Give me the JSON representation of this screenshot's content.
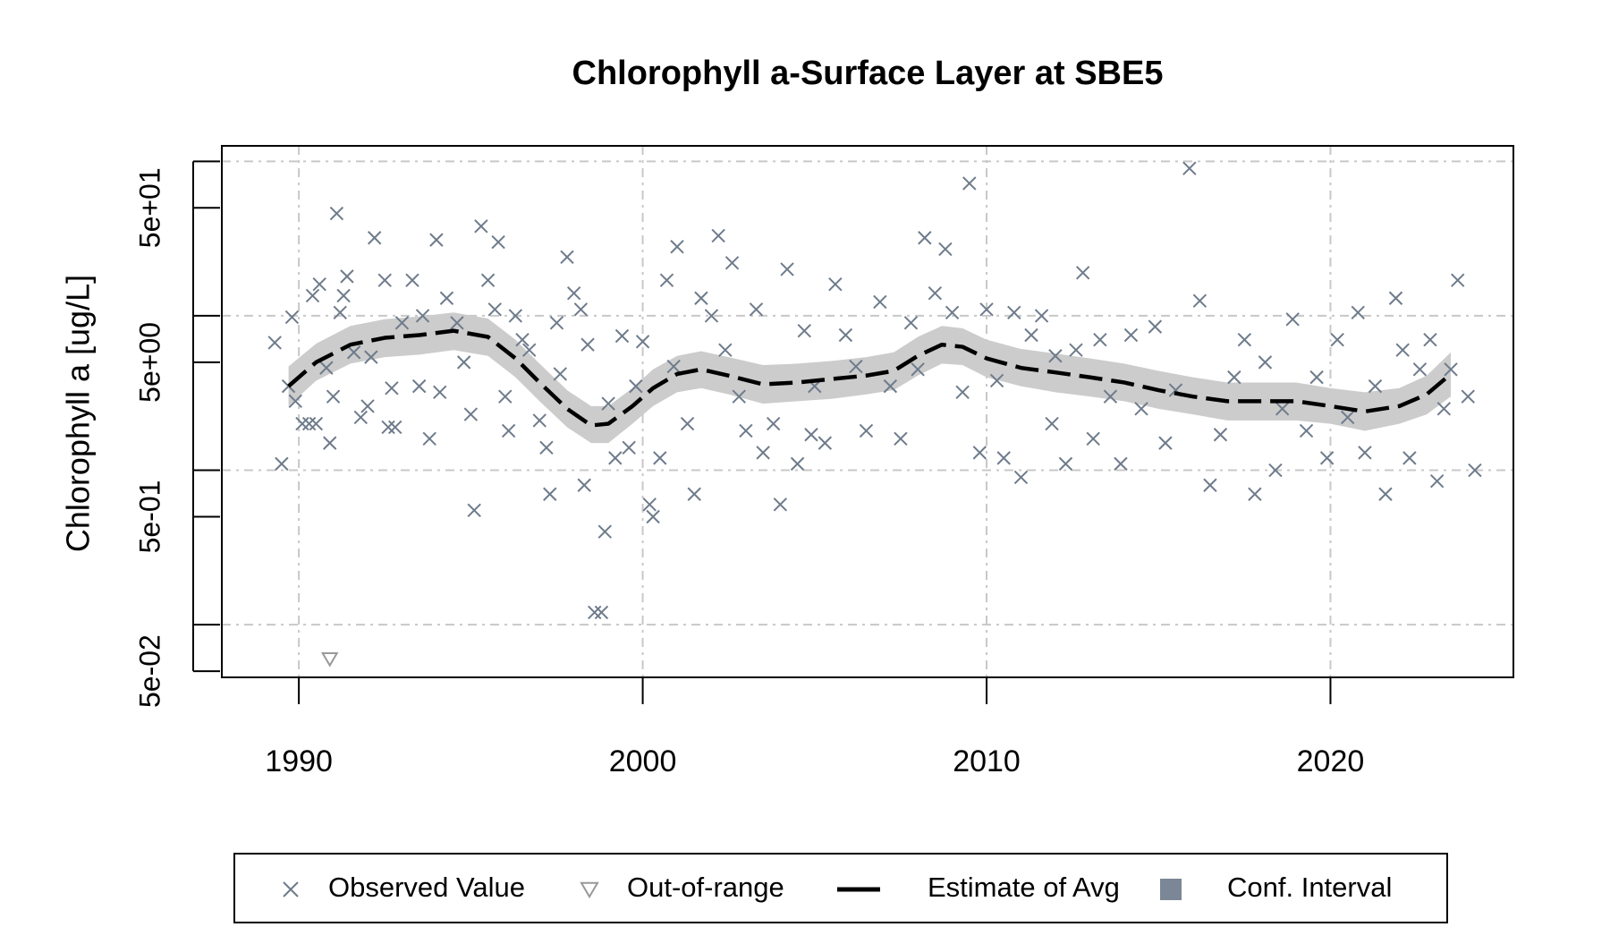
{
  "chart_data": {
    "type": "scatter",
    "title": "Chlorophyll a-Surface Layer at SBE5",
    "y_label": "Chlorophyll a [ug/L]",
    "yscale": "log",
    "grid": true,
    "legend": "bottom",
    "xlim": [
      1987.76,
      2025.32
    ],
    "xticks": [
      1990,
      2000,
      2010,
      2020
    ],
    "ylim": [
      0.0456,
      126
    ],
    "yticks": [
      {
        "value": 0.05,
        "label": "5e-02"
      },
      {
        "value": 0.5,
        "label": "5e-01"
      },
      {
        "value": 5,
        "label": "5e+00"
      },
      {
        "value": 50,
        "label": "5e+01"
      }
    ],
    "y_unlabeled_ticks": [
      0.1,
      1,
      10,
      100
    ],
    "series": [
      {
        "name": "Observed Value",
        "kind": "cross",
        "color": "#6e7b8b",
        "x": [
          1989.3,
          1989.5,
          1989.7,
          1989.8,
          1989.9,
          1990.1,
          1990.3,
          1990.5,
          1990.4,
          1990.6,
          1990.8,
          1990.9,
          1991.0,
          1991.1,
          1991.2,
          1991.3,
          1991.4,
          1991.6,
          1991.8,
          1992.0,
          1992.1,
          1992.2,
          1992.5,
          1992.6,
          1992.8,
          1992.7,
          1993.0,
          1993.3,
          1993.5,
          1993.6,
          1993.8,
          1994.0,
          1994.1,
          1994.3,
          1994.6,
          1994.8,
          1995.0,
          1995.1,
          1995.3,
          1995.5,
          1995.7,
          1995.8,
          1996.0,
          1996.1,
          1996.3,
          1996.5,
          1996.7,
          1997.0,
          1997.2,
          1997.3,
          1997.5,
          1997.6,
          1997.8,
          1998.0,
          1998.2,
          1998.3,
          1998.4,
          1998.6,
          1998.8,
          1998.9,
          1999.0,
          1999.2,
          1999.4,
          1999.6,
          1999.8,
          2000.0,
          2000.2,
          2000.3,
          2000.5,
          2000.7,
          2000.9,
          2001.0,
          2001.3,
          2001.5,
          2001.7,
          2002.0,
          2002.2,
          2002.4,
          2002.6,
          2002.8,
          2003.0,
          2003.3,
          2003.5,
          2003.8,
          2004.0,
          2004.2,
          2004.5,
          2004.7,
          2004.9,
          2005.0,
          2005.3,
          2005.6,
          2005.9,
          2006.2,
          2006.5,
          2006.9,
          2007.2,
          2007.5,
          2007.8,
          2008.0,
          2008.2,
          2008.5,
          2008.8,
          2009.0,
          2009.3,
          2009.5,
          2009.8,
          2010.0,
          2010.3,
          2010.5,
          2010.8,
          2011.0,
          2011.3,
          2011.6,
          2011.9,
          2012.0,
          2012.3,
          2012.6,
          2012.8,
          2013.1,
          2013.3,
          2013.6,
          2013.9,
          2014.2,
          2014.5,
          2014.9,
          2015.2,
          2015.5,
          2015.9,
          2016.2,
          2016.5,
          2016.8,
          2017.2,
          2017.5,
          2017.8,
          2018.1,
          2018.4,
          2018.6,
          2018.9,
          2019.3,
          2019.6,
          2019.9,
          2020.2,
          2020.5,
          2020.8,
          2021.0,
          2021.3,
          2021.6,
          2021.9,
          2022.1,
          2022.3,
          2022.6,
          2022.9,
          2023.1,
          2023.3,
          2023.5,
          2023.7,
          2024.0,
          2024.2
        ],
        "values": [
          6.7,
          1.1,
          3.5,
          9.8,
          2.8,
          2.0,
          2.0,
          2.0,
          13.5,
          16,
          4.6,
          1.5,
          3.0,
          46,
          10.5,
          13.5,
          18,
          5.8,
          2.2,
          2.6,
          5.4,
          32,
          17,
          1.9,
          1.9,
          3.4,
          9,
          17,
          3.5,
          10,
          1.6,
          31,
          3.2,
          13,
          9,
          5,
          2.3,
          0.55,
          38,
          17,
          11,
          30,
          3,
          1.8,
          10,
          7,
          6,
          2.1,
          1.4,
          0.7,
          9,
          4.2,
          24,
          14,
          11,
          0.8,
          6.5,
          0.12,
          0.12,
          0.4,
          2.7,
          1.2,
          7.4,
          1.4,
          3.5,
          6.8,
          0.6,
          0.5,
          1.2,
          17,
          4.7,
          28,
          2,
          0.7,
          13,
          10,
          33,
          6,
          22,
          3,
          1.8,
          11,
          1.3,
          2.0,
          0.6,
          20,
          1.1,
          8,
          1.7,
          3.5,
          1.5,
          16,
          7.5,
          4.7,
          1.8,
          12.3,
          3.5,
          1.6,
          9,
          4.5,
          32,
          14,
          27,
          10.5,
          3.2,
          72,
          1.3,
          11,
          3.8,
          1.2,
          10.5,
          0.9,
          7.5,
          10,
          2,
          5.5,
          1.1,
          6,
          19,
          1.6,
          7,
          3,
          1.1,
          7.5,
          2.5,
          8.5,
          1.5,
          3.3,
          90,
          12.5,
          0.8,
          1.7,
          4,
          7,
          0.7,
          5,
          1,
          2.5,
          9.5,
          1.8,
          4,
          1.2,
          7,
          2.2,
          10.5,
          1.3,
          3.5,
          0.7,
          13,
          6,
          1.2,
          4.5,
          7,
          0.85,
          2.5,
          4.5,
          17,
          3,
          1
        ]
      },
      {
        "name": "Out-of-range",
        "kind": "triangle",
        "color": "#999999",
        "x": [
          1990.9
        ],
        "values": [
          0.06
        ]
      },
      {
        "name": "Estimate of Avg",
        "kind": "line",
        "color": "#000000",
        "x": [
          1989.7,
          1990.5,
          1991.5,
          1992.5,
          1993.5,
          1994.5,
          1995.5,
          1996.3,
          1997.0,
          1997.8,
          1998.5,
          1999.0,
          1999.7,
          2000.3,
          2001.0,
          2001.7,
          2002.5,
          2003.5,
          2004.5,
          2005.5,
          2006.5,
          2007.3,
          2008.0,
          2008.7,
          2009.3,
          2010.0,
          2011.0,
          2012.0,
          2013.0,
          2014.0,
          2015.0,
          2016.0,
          2017.0,
          2018.0,
          2019.0,
          2020.0,
          2021.0,
          2022.0,
          2022.8,
          2023.5
        ],
        "values": [
          3.5,
          5.0,
          6.5,
          7.2,
          7.5,
          8.0,
          7.3,
          5.3,
          3.7,
          2.5,
          1.95,
          2.0,
          2.6,
          3.4,
          4.2,
          4.5,
          4.1,
          3.6,
          3.7,
          3.9,
          4.1,
          4.4,
          5.5,
          6.5,
          6.3,
          5.3,
          4.6,
          4.3,
          4.0,
          3.7,
          3.3,
          3.0,
          2.8,
          2.8,
          2.8,
          2.6,
          2.4,
          2.6,
          3.1,
          4.2
        ]
      },
      {
        "name": "Conf. Interval",
        "kind": "band",
        "color": "#7b8796",
        "band_color": "#cccccc",
        "x": [
          1989.7,
          1990.5,
          1991.5,
          1992.5,
          1993.5,
          1994.5,
          1995.5,
          1996.3,
          1997.0,
          1997.8,
          1998.5,
          1999.0,
          1999.7,
          2000.3,
          2001.0,
          2001.7,
          2002.5,
          2003.5,
          2004.5,
          2005.5,
          2006.5,
          2007.3,
          2008.0,
          2008.7,
          2009.3,
          2010.0,
          2011.0,
          2012.0,
          2013.0,
          2014.0,
          2015.0,
          2016.0,
          2017.0,
          2018.0,
          2019.0,
          2020.0,
          2021.0,
          2022.0,
          2022.8,
          2023.5
        ],
        "upper": [
          4.7,
          6.6,
          8.6,
          9.5,
          9.9,
          10.5,
          9.6,
          7.0,
          4.9,
          3.3,
          2.6,
          2.6,
          3.4,
          4.5,
          5.5,
          5.9,
          5.4,
          4.8,
          4.9,
          5.1,
          5.4,
          5.8,
          7.3,
          8.6,
          8.3,
          7.0,
          6.1,
          5.7,
          5.3,
          4.9,
          4.4,
          4.0,
          3.7,
          3.7,
          3.7,
          3.4,
          3.2,
          3.4,
          4.1,
          5.8
        ],
        "lower": [
          2.6,
          3.8,
          4.9,
          5.4,
          5.6,
          6.0,
          5.5,
          4.0,
          2.8,
          1.9,
          1.5,
          1.5,
          2.0,
          2.6,
          3.2,
          3.4,
          3.1,
          2.7,
          2.8,
          2.9,
          3.1,
          3.3,
          4.1,
          4.9,
          4.8,
          4.0,
          3.5,
          3.2,
          3.0,
          2.8,
          2.5,
          2.3,
          2.1,
          2.1,
          2.1,
          2.0,
          1.8,
          2.0,
          2.3,
          3.0
        ]
      }
    ]
  }
}
